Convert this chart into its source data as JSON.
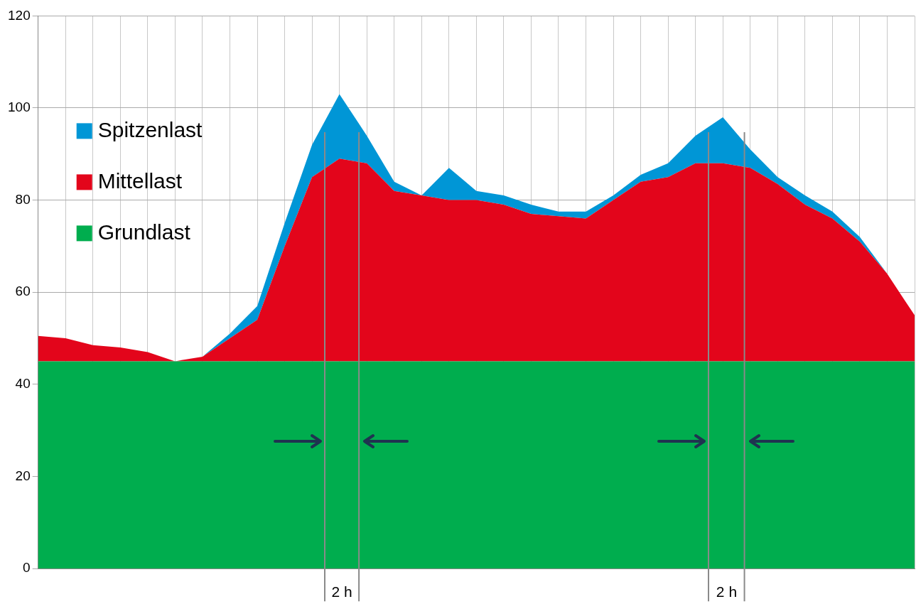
{
  "chart_data": {
    "type": "area",
    "stacked": true,
    "categories": [
      null,
      null,
      null,
      null,
      null,
      null,
      null,
      null,
      null,
      null,
      null,
      null,
      null,
      null,
      null,
      null,
      null,
      null,
      null,
      null,
      null,
      null,
      null,
      null,
      null,
      null,
      null,
      null,
      null,
      null,
      null,
      null,
      null
    ],
    "series": [
      {
        "name": "Grundlast",
        "color": "#00ad4e",
        "values": [
          45,
          45,
          45,
          45,
          45,
          45,
          45,
          45,
          45,
          45,
          45,
          45,
          45,
          45,
          45,
          45,
          45,
          45,
          45,
          45,
          45,
          45,
          45,
          45,
          45,
          45,
          45,
          45,
          45,
          45,
          45,
          45,
          45
        ]
      },
      {
        "name": "Mittellast",
        "color": "#e3051b",
        "values": [
          5.5,
          5,
          3.5,
          3,
          2,
          0,
          1,
          5,
          9,
          25,
          40,
          44,
          43,
          37,
          36,
          35,
          35,
          34,
          32,
          31.5,
          31,
          35,
          39,
          40,
          43,
          43,
          42,
          38.5,
          34,
          31,
          26,
          19,
          10
        ]
      },
      {
        "name": "Spitzenlast",
        "color": "#0096d6",
        "values": [
          0,
          0,
          0,
          0,
          0,
          0,
          0,
          1,
          3,
          5,
          7,
          14,
          6,
          2,
          0,
          7,
          2,
          2,
          2,
          1,
          1.5,
          1,
          1.5,
          3,
          6,
          10,
          4,
          1.5,
          2,
          1.5,
          1,
          0,
          0
        ]
      }
    ],
    "ylim": [
      0,
      120
    ],
    "yticks": [
      0,
      20,
      40,
      60,
      80,
      100,
      120
    ],
    "grid": true,
    "legend": "top left",
    "annotations": [
      "2 h",
      "2 h"
    ]
  }
}
